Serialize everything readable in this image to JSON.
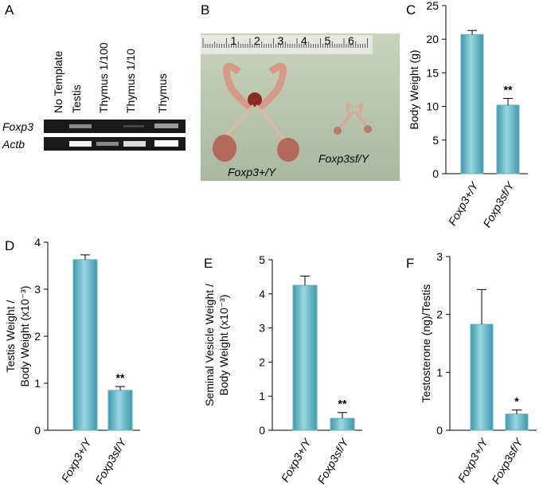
{
  "panels": {
    "gel": {
      "letter": "A",
      "lanes": [
        "No Template",
        "Testis",
        "Thymus 1/100",
        "Thymus 1/10",
        "Thymus"
      ],
      "genes": [
        "Foxp3",
        "Actb"
      ]
    },
    "photo": {
      "letter": "B",
      "ruler_labels": [
        "1",
        "2",
        "3",
        "4",
        "5",
        "6"
      ],
      "labels": [
        "Foxp3+/Y",
        "Foxp3sf/Y"
      ]
    }
  },
  "chart_data": [
    {
      "type": "bar",
      "letter": "C",
      "ylabel": [
        "Body Weight (g)"
      ],
      "categories": [
        "Foxp3+/Y",
        "Foxp3sf/Y"
      ],
      "values": [
        20.7,
        10.2
      ],
      "errors": [
        0.6,
        1.0
      ],
      "annotations": [
        null,
        "**"
      ],
      "color": "#5fb6c8",
      "ylim": [
        0,
        25
      ],
      "yticks": [
        0,
        5,
        10,
        15,
        20,
        25
      ]
    },
    {
      "type": "bar",
      "letter": "D",
      "ylabel": [
        "Testis Weight /",
        "Body Weight (x10⁻³)"
      ],
      "categories": [
        "Foxp3+/Y",
        "Foxp3sf/Y"
      ],
      "values": [
        3.63,
        0.85
      ],
      "errors": [
        0.1,
        0.08
      ],
      "annotations": [
        null,
        "**"
      ],
      "color": "#5fb6c8",
      "ylim": [
        0,
        4
      ],
      "yticks": [
        0,
        1,
        2,
        3,
        4
      ]
    },
    {
      "type": "bar",
      "letter": "E",
      "ylabel": [
        "Seminal Vesicle Weight /",
        "Body Weight (x10⁻³)"
      ],
      "categories": [
        "Foxp3+/Y",
        "Foxp3sf/Y"
      ],
      "values": [
        4.25,
        0.35
      ],
      "errors": [
        0.27,
        0.17
      ],
      "annotations": [
        null,
        "**"
      ],
      "color": "#5fb6c8",
      "ylim": [
        0,
        5
      ],
      "yticks": [
        0,
        1,
        2,
        3,
        4,
        5
      ]
    },
    {
      "type": "bar",
      "letter": "F",
      "ylabel": [
        "Testosterone (ng)/Testis"
      ],
      "categories": [
        "Foxp3+/Y",
        "Foxp3sf/Y"
      ],
      "values": [
        1.83,
        0.28
      ],
      "errors": [
        0.6,
        0.07
      ],
      "annotations": [
        null,
        "*"
      ],
      "color": "#5fb6c8",
      "ylim": [
        0,
        3
      ],
      "yticks": [
        0,
        1,
        2,
        3
      ]
    }
  ]
}
